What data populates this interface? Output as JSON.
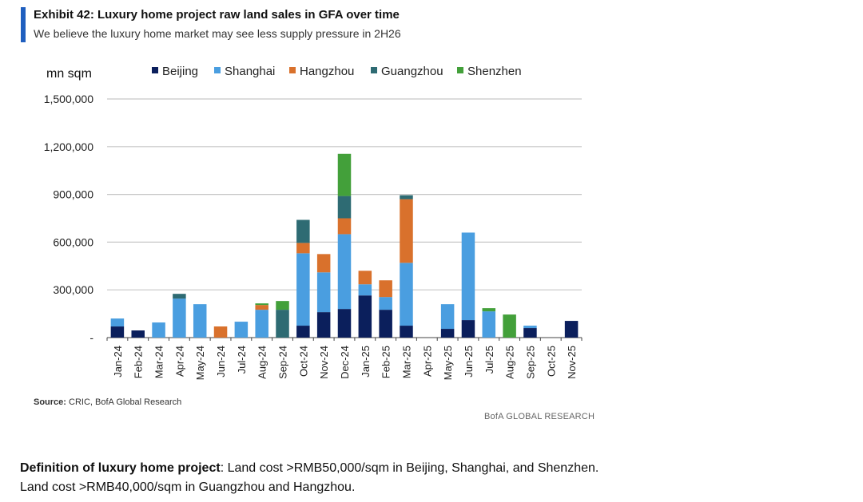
{
  "header": {
    "title": "Exhibit 42: Luxury home project raw land sales in GFA over time",
    "subtitle": "We believe the luxury home market may see less supply pressure in 2H26"
  },
  "footer": {
    "source_label": "Source:",
    "source_text": " CRIC, BofA Global Research",
    "brand": "BofA GLOBAL RESEARCH"
  },
  "definition": {
    "term": "Definition of luxury home project",
    "text": ": Land cost >RMB50,000/sqm in Beijing, Shanghai, and Shenzhen. Land cost >RMB40,000/sqm in Guangzhou and Hangzhou."
  },
  "chart_data": {
    "type": "bar",
    "stacked": true,
    "title": "Luxury home project raw land sales in GFA over time",
    "ylabel": "mn sqm",
    "ylim": [
      0,
      1500000
    ],
    "yticks": [
      0,
      300000,
      600000,
      900000,
      1200000,
      1500000
    ],
    "ytick_labels": [
      "-",
      "300,000",
      "600,000",
      "900,000",
      "1,200,000",
      "1,500,000"
    ],
    "grid": true,
    "legend_position": "top",
    "categories": [
      "Jan-24",
      "Feb-24",
      "Mar-24",
      "Apr-24",
      "May-24",
      "Jun-24",
      "Jul-24",
      "Aug-24",
      "Sep-24",
      "Oct-24",
      "Nov-24",
      "Dec-24",
      "Jan-25",
      "Feb-25",
      "Mar-25",
      "Apr-25",
      "May-25",
      "Jun-25",
      "Jul-25",
      "Aug-25",
      "Sep-25",
      "Oct-25",
      "Nov-25"
    ],
    "series": [
      {
        "name": "Beijing",
        "color": "#0b1f5c",
        "values": [
          70000,
          45000,
          0,
          0,
          0,
          0,
          0,
          0,
          0,
          75000,
          160000,
          180000,
          265000,
          175000,
          75000,
          0,
          55000,
          110000,
          0,
          0,
          60000,
          0,
          105000
        ]
      },
      {
        "name": "Shanghai",
        "color": "#4a9ee0",
        "values": [
          50000,
          0,
          95000,
          245000,
          210000,
          0,
          100000,
          175000,
          0,
          455000,
          250000,
          470000,
          70000,
          80000,
          395000,
          0,
          155000,
          550000,
          165000,
          0,
          15000,
          0,
          0
        ]
      },
      {
        "name": "Hangzhou",
        "color": "#d9712c",
        "values": [
          0,
          0,
          0,
          0,
          0,
          70000,
          0,
          30000,
          0,
          65000,
          115000,
          100000,
          85000,
          105000,
          400000,
          0,
          0,
          0,
          0,
          0,
          0,
          0,
          0
        ]
      },
      {
        "name": "Guangzhou",
        "color": "#2e6b73",
        "values": [
          0,
          0,
          0,
          30000,
          0,
          0,
          0,
          0,
          175000,
          145000,
          0,
          140000,
          0,
          0,
          25000,
          0,
          0,
          0,
          0,
          0,
          0,
          0,
          0
        ]
      },
      {
        "name": "Shenzhen",
        "color": "#43a03a",
        "values": [
          0,
          0,
          0,
          0,
          0,
          0,
          0,
          10000,
          55000,
          0,
          0,
          265000,
          0,
          0,
          0,
          0,
          0,
          0,
          20000,
          145000,
          0,
          0,
          0
        ]
      }
    ]
  }
}
